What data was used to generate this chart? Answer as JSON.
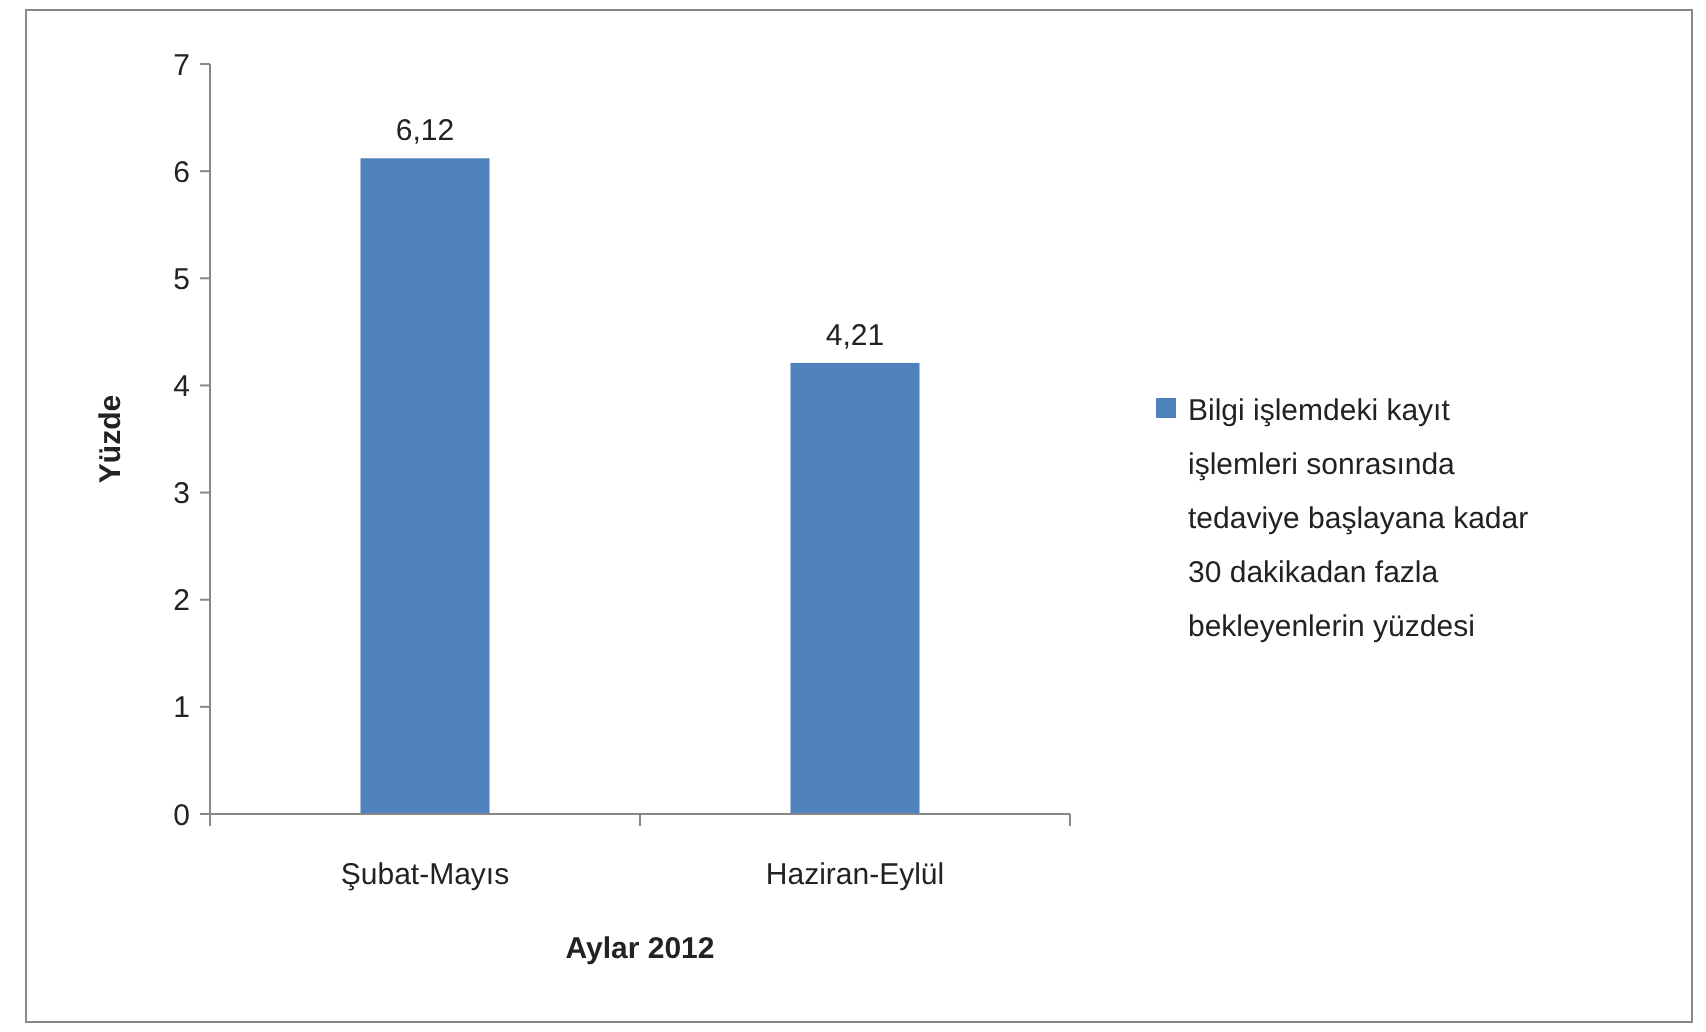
{
  "chart_data": {
    "type": "bar",
    "xlabel": "Aylar 2012",
    "ylabel": "Yüzde",
    "categories": [
      "Şubat-Mayıs",
      "Haziran-Eylül"
    ],
    "series": [
      {
        "name": "Bilgi işlemdeki kayıt işlemleri sonrasında tedaviye başlayana kadar 30 dakikadan fazla bekleyenlerin yüzdesi",
        "color": "#4f81bd",
        "values": [
          6.12,
          4.21
        ],
        "value_labels": [
          "6,12",
          "4,21"
        ]
      }
    ],
    "ylim": [
      0,
      7
    ],
    "yticks": [
      0,
      1,
      2,
      3,
      4,
      5,
      6,
      7
    ],
    "legend": "right"
  }
}
